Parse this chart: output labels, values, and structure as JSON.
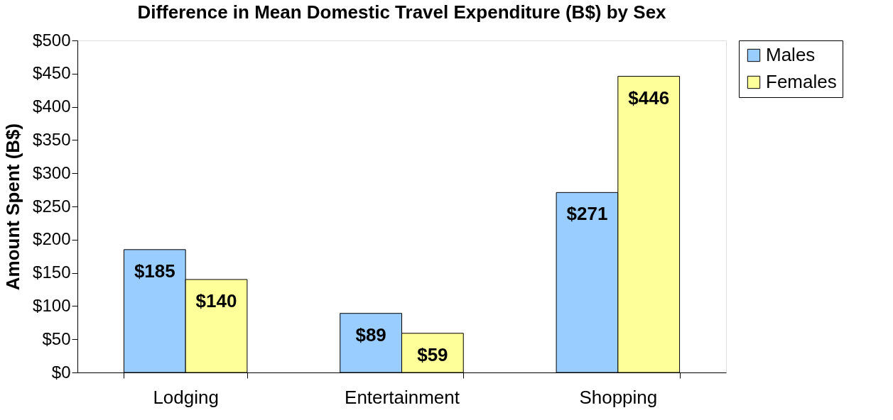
{
  "chart_data": {
    "type": "bar",
    "title": "Difference in Mean Domestic Travel Expenditure (B$) by Sex",
    "ylabel": "Amount Spent (B$)",
    "categories": [
      "Lodging",
      "Entertainment",
      "Shopping"
    ],
    "series": [
      {
        "name": "Males",
        "color": "#99ccff",
        "values": [
          185,
          89,
          271
        ],
        "value_labels": [
          "$185",
          "$89",
          "$271"
        ]
      },
      {
        "name": "Females",
        "color": "#ffff99",
        "values": [
          140,
          59,
          446
        ],
        "value_labels": [
          "$140",
          "$59",
          "$446"
        ]
      }
    ],
    "ylim": [
      0,
      500
    ],
    "yticks": [
      {
        "value": 0,
        "label": "$0"
      },
      {
        "value": 50,
        "label": "$50"
      },
      {
        "value": 100,
        "label": "$100"
      },
      {
        "value": 150,
        "label": "$150"
      },
      {
        "value": 200,
        "label": "$200"
      },
      {
        "value": 250,
        "label": "$250"
      },
      {
        "value": 300,
        "label": "$300"
      },
      {
        "value": 350,
        "label": "$350"
      },
      {
        "value": 400,
        "label": "$400"
      },
      {
        "value": 450,
        "label": "$450"
      },
      {
        "value": 500,
        "label": "$500"
      }
    ],
    "grid": false,
    "legend": "right"
  }
}
